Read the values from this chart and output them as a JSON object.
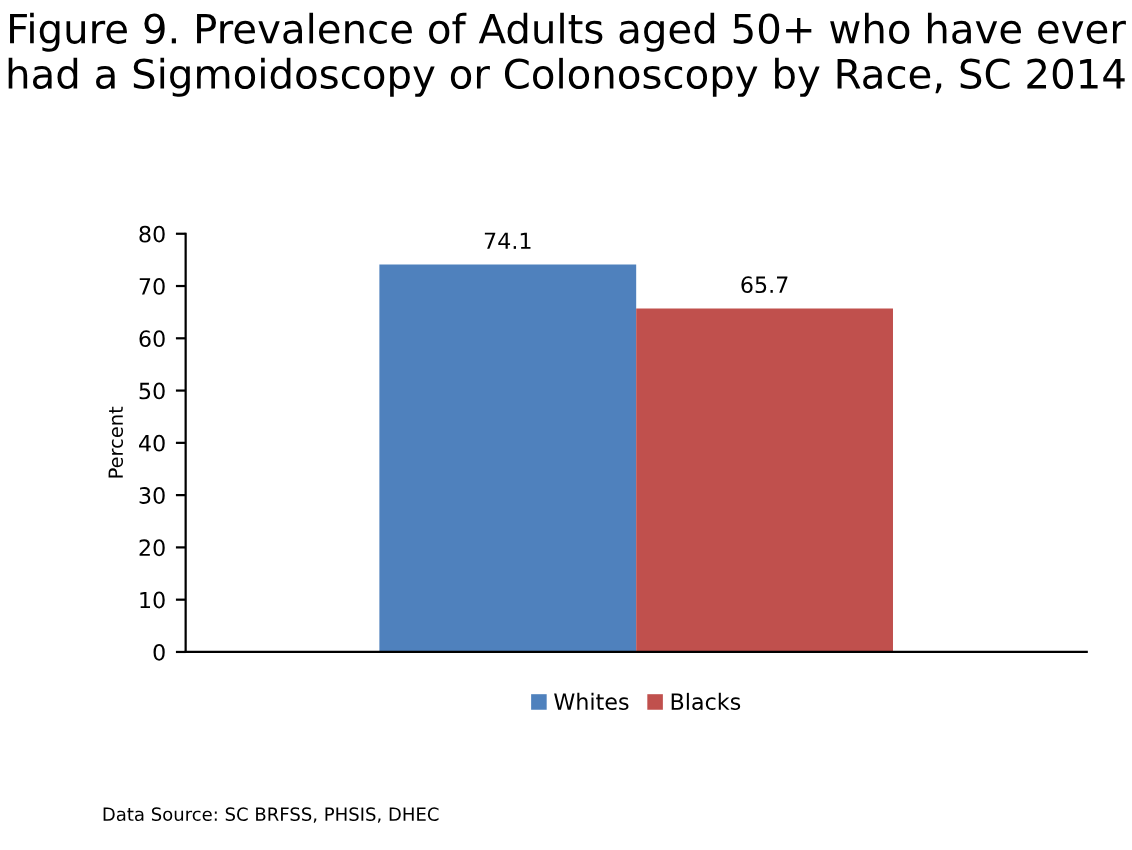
{
  "chart_data": {
    "type": "bar",
    "title": "Figure 9. Prevalence of Adults aged 50+ who have ever had a Sigmoidoscopy or Colonoscopy by Race, SC 2014",
    "ylabel": "Percent",
    "categories": [
      null
    ],
    "series": [
      {
        "name": "Whites",
        "color": "#4f81bd",
        "values": [
          74.1
        ]
      },
      {
        "name": "Blacks",
        "color": "#c0504d",
        "values": [
          65.7
        ]
      }
    ],
    "ylim": [
      0,
      80
    ],
    "yticks": [
      0,
      10,
      20,
      30,
      40,
      50,
      60,
      70,
      80
    ],
    "grid": false,
    "legend": "bottom",
    "data_labels": true,
    "annotations": [
      "Data Source: SC BRFSS, PHSIS, DHEC"
    ]
  }
}
